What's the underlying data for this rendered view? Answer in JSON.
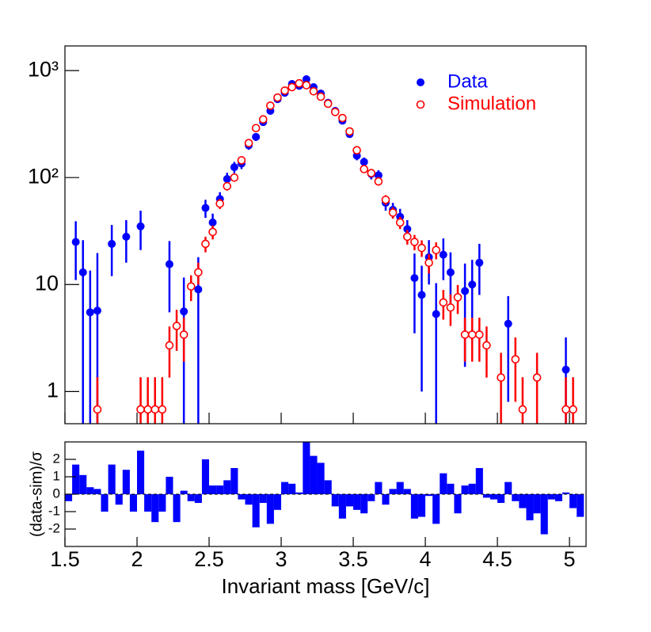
{
  "chart_data": [
    {
      "type": "scatter",
      "log_y": true,
      "legend": "upper right",
      "xlim": [
        1.5,
        5.115
      ],
      "ylim": [
        0.5,
        1700
      ],
      "yticks": [
        1,
        10,
        {
          "value": 100,
          "label": "10²"
        },
        {
          "value": 1000,
          "label": "10³"
        }
      ],
      "x": [
        1.525,
        1.575,
        1.625,
        1.675,
        1.725,
        1.775,
        1.825,
        1.875,
        1.925,
        1.975,
        2.025,
        2.075,
        2.125,
        2.175,
        2.225,
        2.275,
        2.325,
        2.375,
        2.425,
        2.475,
        2.525,
        2.575,
        2.625,
        2.675,
        2.725,
        2.775,
        2.825,
        2.875,
        2.925,
        2.975,
        3.025,
        3.075,
        3.125,
        3.175,
        3.225,
        3.275,
        3.325,
        3.375,
        3.425,
        3.475,
        3.525,
        3.575,
        3.625,
        3.675,
        3.725,
        3.775,
        3.825,
        3.875,
        3.925,
        3.975,
        4.025,
        4.075,
        4.125,
        4.175,
        4.225,
        4.275,
        4.325,
        4.375,
        4.425,
        4.475,
        4.525,
        4.575,
        4.625,
        4.675,
        4.725,
        4.775,
        4.825,
        4.875,
        4.925,
        4.975,
        5.025,
        5.075
      ],
      "series": [
        {
          "name": "Data",
          "color": "#0000ff",
          "marker": "filled",
          "values": [
            null,
            25,
            13,
            5.5,
            5.7,
            null,
            24,
            null,
            28,
            null,
            35,
            null,
            null,
            null,
            15.5,
            null,
            5.6,
            null,
            9,
            52,
            38,
            63,
            97,
            125,
            135,
            200,
            240,
            330,
            420,
            540,
            620,
            750,
            720,
            830,
            700,
            610,
            500,
            420,
            340,
            255,
            160,
            140,
            108,
            105,
            58,
            50,
            43,
            33,
            11.5,
            8,
            18,
            5.3,
            19,
            13,
            null,
            8.7,
            10,
            16,
            null,
            null,
            null,
            4.3,
            null,
            null,
            null,
            null,
            null,
            null,
            null,
            1.6,
            null,
            null
          ],
          "errors": [
            null,
            14,
            13,
            8,
            14,
            null,
            12,
            null,
            12,
            null,
            14,
            null,
            null,
            null,
            10,
            null,
            6,
            null,
            9,
            10,
            8,
            10,
            14,
            15,
            15,
            18,
            20,
            22,
            25,
            28,
            30,
            33,
            33,
            35,
            32,
            30,
            27,
            25,
            22,
            19,
            15,
            14,
            12,
            12,
            9,
            8,
            8,
            7,
            8,
            7,
            8,
            5,
            8,
            7,
            null,
            7,
            7,
            8,
            null,
            null,
            null,
            3.5,
            null,
            null,
            null,
            null,
            null,
            null,
            null,
            1.6,
            null,
            null
          ]
        },
        {
          "name": "Simulation",
          "color": "#ff0000",
          "marker": "open",
          "values": [
            null,
            null,
            null,
            null,
            0.68,
            null,
            null,
            null,
            null,
            null,
            0.68,
            0.68,
            0.68,
            0.68,
            2.7,
            4.1,
            3.4,
            9.6,
            13,
            24,
            31,
            57,
            83,
            100,
            145,
            210,
            290,
            350,
            470,
            560,
            650,
            700,
            760,
            730,
            640,
            570,
            490,
            410,
            360,
            270,
            180,
            120,
            110,
            92,
            62,
            47,
            38,
            28,
            25,
            22,
            16,
            21,
            6.8,
            6.1,
            7.6,
            3.4,
            3.4,
            3.4,
            2.7,
            null,
            1.35,
            null,
            2.0,
            0.68,
            null,
            1.35,
            null,
            null,
            null,
            0.68,
            0.68,
            null
          ],
          "errors": [
            null,
            null,
            null,
            null,
            0.68,
            null,
            null,
            null,
            null,
            null,
            0.68,
            0.68,
            0.68,
            0.68,
            1.35,
            1.7,
            1.5,
            2.6,
            3,
            4,
            4.6,
            6.2,
            7.5,
            8.2,
            10,
            12,
            14,
            15.4,
            18,
            19.5,
            21,
            22,
            23,
            22,
            21,
            19.7,
            18,
            16.7,
            15.6,
            13.5,
            11,
            9,
            8.6,
            7.9,
            6.5,
            5.7,
            5,
            4.4,
            4.1,
            3.9,
            3.3,
            3.8,
            2.1,
            2,
            2.3,
            1.5,
            1.5,
            1.5,
            1.35,
            null,
            0.95,
            null,
            1.2,
            0.68,
            null,
            0.95,
            null,
            null,
            null,
            0.68,
            0.68,
            null
          ]
        }
      ]
    },
    {
      "type": "histogram",
      "color": "#0000ff",
      "xlabel": "Invariant mass [GeV/c]",
      "ylabel": "(data-sim)/σ",
      "xlim": [
        1.5,
        5.115
      ],
      "ylim": [
        -3,
        3
      ],
      "xticks": [
        1.5,
        2,
        2.5,
        3,
        3.5,
        4,
        4.5,
        5
      ],
      "yticks": [
        -2,
        -1,
        0,
        1,
        2
      ],
      "bins": [
        1.5,
        1.55,
        1.6,
        1.65,
        1.7,
        1.75,
        1.8,
        1.85,
        1.9,
        1.95,
        2.0,
        2.05,
        2.1,
        2.15,
        2.2,
        2.25,
        2.3,
        2.35,
        2.4,
        2.45,
        2.5,
        2.55,
        2.6,
        2.65,
        2.7,
        2.75,
        2.8,
        2.85,
        2.9,
        2.95,
        3.0,
        3.05,
        3.1,
        3.15,
        3.2,
        3.25,
        3.3,
        3.35,
        3.4,
        3.45,
        3.5,
        3.55,
        3.6,
        3.65,
        3.7,
        3.75,
        3.8,
        3.85,
        3.9,
        3.95,
        4.0,
        4.05,
        4.1,
        4.15,
        4.2,
        4.25,
        4.3,
        4.35,
        4.4,
        4.45,
        4.5,
        4.55,
        4.6,
        4.65,
        4.7,
        4.75,
        4.8,
        4.85,
        4.9,
        4.95,
        5.0,
        5.05,
        5.1
      ],
      "values": [
        -0.4,
        1.7,
        1.1,
        0.4,
        0.3,
        -1.0,
        1.7,
        -0.6,
        1.4,
        -1.0,
        2.5,
        -1.0,
        -1.6,
        -1.0,
        1.0,
        -1.6,
        0.2,
        -0.4,
        -0.5,
        2.0,
        0.5,
        0.5,
        0.8,
        1.5,
        -0.3,
        -0.6,
        -1.9,
        -0.5,
        -1.7,
        -0.9,
        0.7,
        0.6,
        0.1,
        3.0,
        2.2,
        1.8,
        0.8,
        -0.7,
        -1.4,
        -0.7,
        -0.9,
        -1.1,
        -0.4,
        0.7,
        -0.6,
        0.3,
        0.7,
        0.3,
        -1.4,
        -1.3,
        -0.1,
        -1.7,
        1.2,
        0.6,
        -1.1,
        0.5,
        0.6,
        1.5,
        -0.2,
        -0.3,
        -0.5,
        0.7,
        -0.4,
        -0.8,
        -1.5,
        -1.1,
        -2.3,
        -0.3,
        -0.4,
        0.1,
        -0.8,
        -1.3
      ]
    }
  ]
}
